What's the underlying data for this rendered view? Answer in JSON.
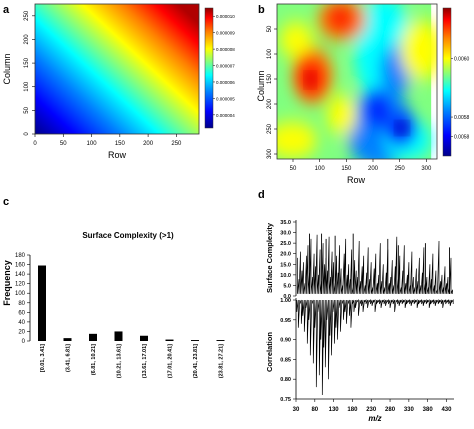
{
  "panel_labels": [
    "a",
    "b",
    "c",
    "d"
  ],
  "colors": {
    "heatmap_scale": [
      "#00008b",
      "#0000ff",
      "#0080ff",
      "#00ffff",
      "#80ff80",
      "#ffff00",
      "#ff8000",
      "#ff0000",
      "#8b0000"
    ],
    "bars": "#000000",
    "lines": "#000000"
  },
  "chart_data": [
    {
      "panel": "a",
      "type": "heatmap",
      "xlabel": "Row",
      "ylabel": "Column",
      "xlim": [
        0,
        290
      ],
      "ylim": [
        0,
        275
      ],
      "x_ticks": [
        0,
        50,
        100,
        150,
        200,
        250
      ],
      "y_ticks": [
        0,
        50,
        100,
        150,
        200,
        250
      ],
      "field": "linear gradient: low at lower-left, high at upper-right",
      "colorbar": {
        "range": [
          3.2e-06,
          1.05e-05
        ],
        "ticks": [
          "0.000010",
          "0.000009",
          "0.000008",
          "0.000007",
          "0.000006",
          "0.000005",
          "0.000004"
        ],
        "tick_values": [
          1e-05,
          9e-06,
          8e-06,
          7e-06,
          6e-06,
          5e-06,
          4e-06
        ]
      }
    },
    {
      "panel": "b",
      "type": "heatmap",
      "xlabel": "Row",
      "ylabel": "Column",
      "xlim": [
        20,
        320
      ],
      "ylim": [
        0,
        310
      ],
      "y_reversed": true,
      "x_ticks": [
        50,
        100,
        150,
        200,
        250,
        300
      ],
      "y_ticks": [
        50,
        100,
        150,
        200,
        250,
        300
      ],
      "field": "smooth surface: hot spot near Row 100 / Column 100, cold region near Row 250 / Column 230",
      "colorbar": {
        "range": [
          0.00575,
          0.00613
        ],
        "ticks": [
          "0.0060",
          "0.0058",
          "0.0058"
        ],
        "tick_values": [
          0.006,
          0.00585,
          0.0058
        ]
      }
    },
    {
      "panel": "c",
      "type": "bar",
      "title": "Surface Complexity (>1)",
      "ylabel": "Frequency",
      "categories": [
        "[0.01, 3.41]",
        "(3.41, 6.81]",
        "(6.81, 10.21]",
        "(10.21, 13.61]",
        "(13.61, 17.01]",
        "(17.01, 20.41]",
        "(20.41, 23.81]",
        "(23.81, 27.21]"
      ],
      "values": [
        158,
        6,
        15,
        20,
        11,
        3,
        2,
        2
      ],
      "ylim": [
        0,
        180
      ],
      "y_ticks": [
        0,
        20,
        40,
        60,
        80,
        100,
        120,
        140,
        160,
        180
      ]
    },
    {
      "panel": "d",
      "type": "line",
      "xlabel": "m/z",
      "xlim": [
        30,
        450
      ],
      "x_ticks": [
        30,
        80,
        130,
        180,
        230,
        280,
        330,
        380,
        430
      ],
      "subplots": [
        {
          "ylabel": "Surface Complexity",
          "ylim": [
            0,
            35
          ],
          "y_ticks": [
            "0.0",
            "5.0",
            "10.0",
            "15.0",
            "20.0",
            "25.0",
            "30.0",
            "35.0"
          ],
          "baseline": 1,
          "x": [
            34,
            38,
            42,
            46,
            50,
            54,
            58,
            62,
            66,
            70,
            74,
            78,
            82,
            86,
            90,
            94,
            98,
            102,
            106,
            110,
            114,
            118,
            122,
            126,
            130,
            134,
            138,
            142,
            146,
            150,
            154,
            158,
            162,
            166,
            170,
            174,
            178,
            182,
            186,
            190,
            194,
            198,
            202,
            206,
            210,
            214,
            218,
            222,
            226,
            230,
            234,
            238,
            242,
            246,
            250,
            254,
            258,
            262,
            266,
            270,
            274,
            278,
            282,
            286,
            290,
            294,
            298,
            302,
            306,
            310,
            314,
            318,
            322,
            326,
            330,
            334,
            338,
            342,
            346,
            350,
            354,
            358,
            362,
            366,
            370,
            374,
            378,
            382,
            386,
            390,
            394,
            398,
            402,
            406,
            410,
            414,
            418,
            422,
            426,
            430,
            434,
            438,
            442,
            446
          ],
          "y": [
            18,
            8,
            21,
            12,
            16,
            6,
            19,
            24,
            11,
            27,
            9,
            20,
            14,
            29,
            10,
            22,
            7,
            25,
            15,
            18,
            12,
            28,
            9,
            21,
            16,
            6,
            19,
            11,
            24,
            13,
            5,
            20,
            27,
            10,
            15,
            8,
            22,
            4,
            17,
            12,
            9,
            26,
            7,
            14,
            19,
            5,
            11,
            23,
            8,
            16,
            4,
            13,
            20,
            6,
            10,
            25,
            7,
            15,
            4,
            11,
            22,
            6,
            9,
            17,
            5,
            14,
            28,
            8,
            19,
            4,
            12,
            24,
            6,
            10,
            16,
            5,
            21,
            9,
            4,
            13,
            7,
            18,
            5,
            11,
            23,
            6,
            9,
            4,
            15,
            8,
            20,
            5,
            12,
            3,
            26,
            7,
            10,
            4,
            14,
            6,
            9,
            4,
            18,
            3
          ],
          "spikes": [
            {
              "x": 66,
              "y": 29.5
            },
            {
              "x": 98,
              "y": 29.5
            },
            {
              "x": 110,
              "y": 27
            },
            {
              "x": 134,
              "y": 28.5
            },
            {
              "x": 182,
              "y": 29.5
            },
            {
              "x": 274,
              "y": 27
            },
            {
              "x": 302,
              "y": 24
            },
            {
              "x": 374,
              "y": 25
            },
            {
              "x": 438,
              "y": 23
            }
          ]
        },
        {
          "ylabel": "Correlation",
          "ylim": [
            0.75,
            1.0
          ],
          "y_ticks": [
            "0.75",
            "0.80",
            "0.85",
            "0.90",
            "0.95",
            "1.00"
          ],
          "baseline": 1.0,
          "x": [
            32,
            36,
            40,
            44,
            48,
            52,
            56,
            60,
            64,
            68,
            72,
            76,
            80,
            84,
            88,
            92,
            96,
            100,
            104,
            108,
            112,
            116,
            120,
            124,
            128,
            132,
            136,
            140,
            144,
            148,
            152,
            156,
            160,
            164,
            168,
            172,
            176,
            180,
            184,
            188,
            192,
            196,
            200,
            204,
            208,
            212,
            216,
            220,
            224,
            228,
            232,
            236,
            240,
            244,
            248,
            252,
            256,
            260,
            264,
            268,
            272,
            276,
            280,
            284,
            288,
            292,
            296,
            300,
            304,
            308,
            312,
            316,
            320,
            324,
            328,
            332,
            336,
            340,
            344,
            348,
            352,
            356,
            360,
            364,
            368,
            372,
            376,
            380,
            384,
            388,
            392,
            396,
            400,
            404,
            408,
            412,
            416,
            420,
            424,
            428,
            432,
            436,
            440,
            444,
            448
          ],
          "y": [
            0.97,
            0.93,
            0.99,
            0.94,
            0.96,
            0.92,
            0.98,
            0.89,
            0.95,
            0.86,
            0.99,
            0.84,
            0.93,
            0.78,
            0.97,
            0.81,
            0.9,
            0.76,
            0.88,
            0.83,
            0.95,
            0.8,
            0.91,
            0.86,
            0.97,
            0.89,
            0.93,
            0.9,
            0.98,
            0.92,
            0.99,
            0.95,
            0.97,
            0.94,
            0.99,
            0.96,
            0.93,
            0.99,
            0.97,
            0.98,
            0.995,
            0.96,
            0.99,
            0.985,
            0.97,
            0.995,
            0.99,
            0.98,
            0.995,
            0.99,
            0.985,
            0.995,
            0.97,
            0.99,
            0.995,
            0.99,
            0.98,
            0.995,
            0.99,
            0.985,
            0.995,
            0.99,
            0.98,
            0.995,
            0.99,
            0.97,
            0.995,
            0.99,
            0.985,
            0.995,
            0.99,
            0.995,
            0.98,
            0.99,
            0.995,
            0.99,
            0.985,
            0.995,
            0.99,
            0.995,
            0.98,
            0.99,
            0.995,
            0.99,
            0.985,
            0.995,
            0.99,
            0.995,
            0.98,
            0.99,
            0.995,
            0.99,
            0.985,
            0.995,
            0.99,
            0.995,
            0.99,
            0.98,
            0.995,
            0.99,
            0.995,
            0.99,
            0.985,
            0.995,
            0.99
          ]
        }
      ]
    }
  ]
}
